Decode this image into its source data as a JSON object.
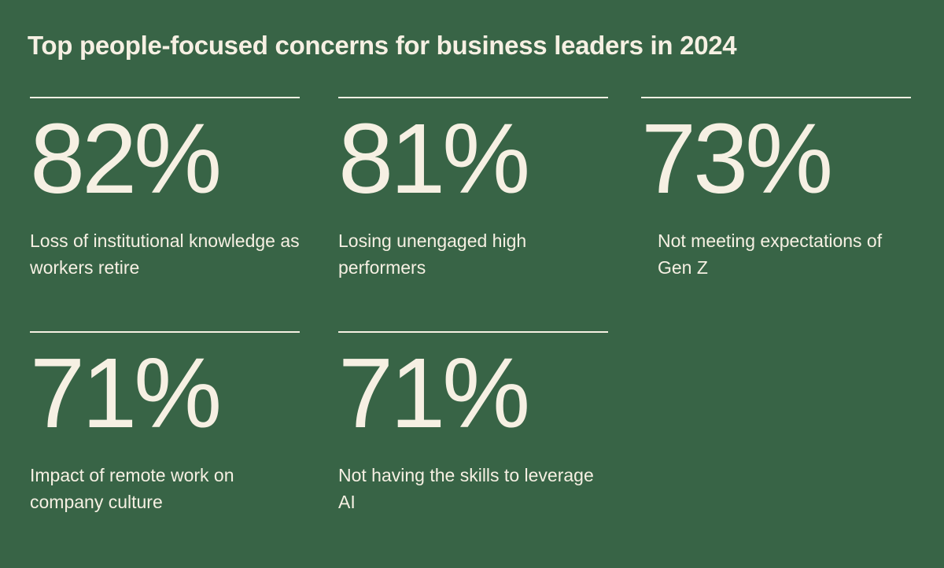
{
  "colors": {
    "background": "#386446",
    "foreground": "#F6F0E3",
    "rule": "#F6F0E3"
  },
  "chart_data": {
    "type": "table",
    "title": "Top people-focused concerns for business leaders in 2024",
    "unit": "%",
    "items": [
      {
        "value": 82,
        "display": "82%",
        "label": "Loss of institutional knowledge as workers retire"
      },
      {
        "value": 81,
        "display": "81%",
        "label": "Losing unengaged high performers"
      },
      {
        "value": 73,
        "display": "73%",
        "label": "Not meeting expectations of Gen Z"
      },
      {
        "value": 71,
        "display": "71%",
        "label": "Impact of remote work on company culture"
      },
      {
        "value": 71,
        "display": "71%",
        "label": "Not having the skills to leverage AI"
      }
    ]
  }
}
